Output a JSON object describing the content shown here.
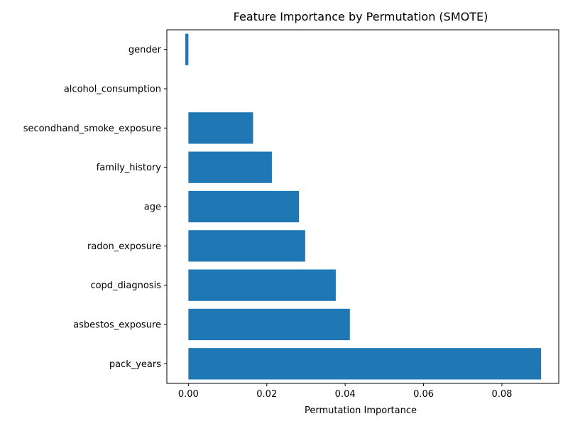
{
  "chart_data": {
    "type": "bar",
    "orientation": "horizontal",
    "title": "Feature Importance by Permutation (SMOTE)",
    "xlabel": "Permutation Importance",
    "ylabel": "",
    "categories": [
      "pack_years",
      "asbestos_exposure",
      "copd_diagnosis",
      "radon_exposure",
      "age",
      "family_history",
      "secondhand_smoke_exposure",
      "alcohol_consumption",
      "gender"
    ],
    "values": [
      0.09,
      0.0412,
      0.0376,
      0.0298,
      0.0282,
      0.0213,
      0.0165,
      0.0,
      -0.0008
    ],
    "xlim": [
      -0.0055,
      0.0945
    ],
    "xticks": [
      0.0,
      0.02,
      0.04,
      0.06,
      0.08
    ],
    "xtick_labels": [
      "0.00",
      "0.02",
      "0.04",
      "0.06",
      "0.08"
    ],
    "bar_color": "#1f77b4",
    "grid": false
  }
}
